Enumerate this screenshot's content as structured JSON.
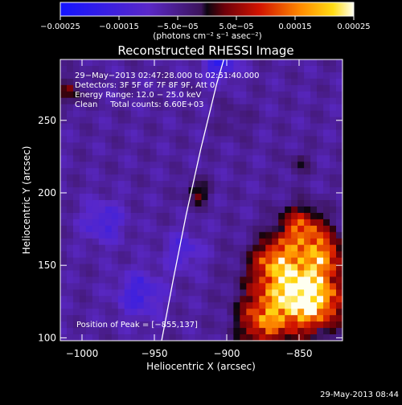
{
  "chart_data": {
    "type": "heatmap",
    "title": "Reconstructed RHESSI Image",
    "xlabel": "Heliocentric X (arcsec)",
    "ylabel": "Heliocentric Y (arcsec)",
    "xlim": [
      -1015,
      -820
    ],
    "ylim": [
      98,
      292
    ],
    "x_ticks": [
      -1000,
      -950,
      -900,
      -850
    ],
    "y_ticks": [
      100,
      150,
      200,
      250
    ],
    "x_tick_labels": [
      "−1000",
      "−950",
      "−900",
      "−850"
    ],
    "y_tick_labels": [
      "100",
      "150",
      "200",
      "250"
    ],
    "colorbar": {
      "range": [
        -0.00025,
        0.00025
      ],
      "ticks": [
        -0.00025,
        -0.00015,
        -5e-05,
        5e-05,
        0.00015,
        0.00025
      ],
      "tick_labels": [
        "−0.00025",
        "−0.00015",
        "−5.0e−05",
        "5.0e−05",
        "0.00015",
        "0.00025"
      ],
      "units": "(photons cm⁻² s⁻¹ asec⁻²)"
    },
    "annotations": [
      "29−May−2013 02:47:28.000 to 02:51:40.000",
      "Detectors: 3F 5F 6F 7F 8F 9F, Att 0",
      "Energy Range: 12.0 − 25.0 keV",
      "Clean     Total counts: 6.60E+03"
    ],
    "peak_label": "Position of Peak = [−855,137]",
    "peak": [
      -855,
      137
    ],
    "limb_curve": [
      [
        -945,
        98
      ],
      [
        -937,
        140
      ],
      [
        -928,
        185
      ],
      [
        -918,
        230
      ],
      [
        -907,
        275
      ],
      [
        -902,
        292
      ]
    ],
    "hot_spots": [
      {
        "x": -856,
        "y": 137,
        "v": 0.00025,
        "r": 18
      },
      {
        "x": -840,
        "y": 125,
        "v": 0.0002,
        "r": 14
      },
      {
        "x": -848,
        "y": 175,
        "v": 0.00017,
        "r": 11
      },
      {
        "x": -875,
        "y": 110,
        "v": 0.00016,
        "r": 12
      },
      {
        "x": -832,
        "y": 158,
        "v": 0.00014,
        "r": 10
      },
      {
        "x": -868,
        "y": 155,
        "v": 0.0001,
        "r": 9
      },
      {
        "x": -920,
        "y": 200,
        "v": 9e-05,
        "r": 6
      },
      {
        "x": -1008,
        "y": 270,
        "v": 8e-05,
        "r": 7
      },
      {
        "x": -850,
        "y": 220,
        "v": 5e-05,
        "r": 6
      },
      {
        "x": -895,
        "y": 250,
        "v": 3e-05,
        "r": 8
      },
      {
        "x": -985,
        "y": 180,
        "v": -8e-05,
        "r": 10
      },
      {
        "x": -960,
        "y": 130,
        "v": -9e-05,
        "r": 11
      },
      {
        "x": -905,
        "y": 290,
        "v": -0.00012,
        "r": 8
      },
      {
        "x": -930,
        "y": 160,
        "v": -7e-05,
        "r": 9
      }
    ]
  },
  "footer": {
    "timestamp": "29-May-2013 08:44"
  }
}
